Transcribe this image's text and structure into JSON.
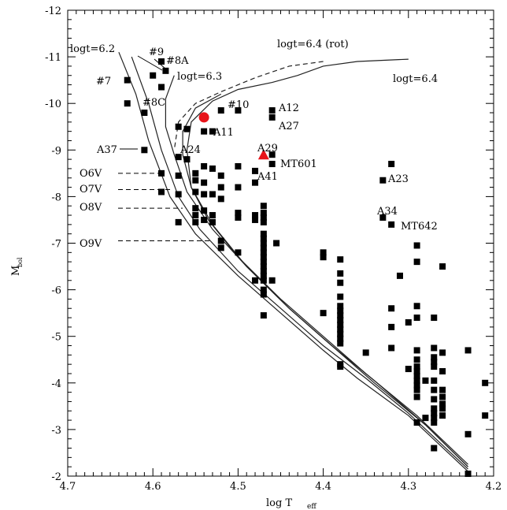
{
  "chart_data": {
    "type": "scatter",
    "title": "",
    "xlabel": "log  T",
    "xlabel_sub": "eff",
    "ylabel": "M",
    "ylabel_sub": "bol",
    "xlim": [
      4.7,
      4.2
    ],
    "ylim": [
      -2,
      -12
    ],
    "x_ticks": [
      4.7,
      4.6,
      4.5,
      4.4,
      4.3,
      4.2
    ],
    "x_tick_labels": [
      "4.7",
      "4.6",
      "4.5",
      "4.4",
      "4.3",
      "4.2"
    ],
    "y_ticks": [
      -12,
      -11,
      -10,
      -9,
      -8,
      -7,
      -6,
      -5,
      -4,
      -3,
      -2
    ],
    "y_tick_labels": [
      "-12",
      "-11",
      "-10",
      "-9",
      "-8",
      "-7",
      "-6",
      "-5",
      "-4",
      "-3",
      "-2"
    ],
    "grid": false,
    "marker_color": "#000000",
    "highlight_color": "#e8141a",
    "stars": [
      [
        4.63,
        -10.5
      ],
      [
        4.63,
        -10.0
      ],
      [
        4.61,
        -9.8
      ],
      [
        4.61,
        -9.0
      ],
      [
        4.59,
        -10.9
      ],
      [
        4.6,
        -10.6
      ],
      [
        4.585,
        -10.7
      ],
      [
        4.59,
        -10.35
      ],
      [
        4.57,
        -9.5
      ],
      [
        4.56,
        -9.45
      ],
      [
        4.57,
        -8.85
      ],
      [
        4.56,
        -8.8
      ],
      [
        4.54,
        -9.4
      ],
      [
        4.53,
        -9.4
      ],
      [
        4.52,
        -9.85
      ],
      [
        4.5,
        -9.85
      ],
      [
        4.46,
        -9.85
      ],
      [
        4.46,
        -9.7
      ],
      [
        4.46,
        -8.9
      ],
      [
        4.46,
        -8.7
      ],
      [
        4.48,
        -8.55
      ],
      [
        4.5,
        -8.65
      ],
      [
        4.59,
        -8.5
      ],
      [
        4.59,
        -8.1
      ],
      [
        4.57,
        -8.45
      ],
      [
        4.57,
        -8.05
      ],
      [
        4.57,
        -7.45
      ],
      [
        4.55,
        -8.5
      ],
      [
        4.55,
        -8.35
      ],
      [
        4.55,
        -8.1
      ],
      [
        4.55,
        -7.75
      ],
      [
        4.55,
        -7.6
      ],
      [
        4.55,
        -7.45
      ],
      [
        4.54,
        -8.65
      ],
      [
        4.54,
        -8.3
      ],
      [
        4.54,
        -8.05
      ],
      [
        4.54,
        -7.7
      ],
      [
        4.54,
        -7.5
      ],
      [
        4.53,
        -8.6
      ],
      [
        4.53,
        -8.05
      ],
      [
        4.53,
        -7.6
      ],
      [
        4.53,
        -7.45
      ],
      [
        4.52,
        -8.45
      ],
      [
        4.52,
        -8.2
      ],
      [
        4.52,
        -7.95
      ],
      [
        4.52,
        -7.05
      ],
      [
        4.52,
        -6.9
      ],
      [
        4.5,
        -8.2
      ],
      [
        4.5,
        -7.65
      ],
      [
        4.5,
        -7.55
      ],
      [
        4.5,
        -6.8
      ],
      [
        4.48,
        -8.3
      ],
      [
        4.48,
        -7.6
      ],
      [
        4.48,
        -7.5
      ],
      [
        4.48,
        -6.2
      ],
      [
        4.47,
        -7.8
      ],
      [
        4.47,
        -7.65
      ],
      [
        4.47,
        -7.55
      ],
      [
        4.47,
        -7.45
      ],
      [
        4.47,
        -7.2
      ],
      [
        4.47,
        -7.1
      ],
      [
        4.47,
        -7.0
      ],
      [
        4.47,
        -6.9
      ],
      [
        4.47,
        -6.8
      ],
      [
        4.47,
        -6.7
      ],
      [
        4.47,
        -6.6
      ],
      [
        4.47,
        -6.5
      ],
      [
        4.47,
        -6.4
      ],
      [
        4.47,
        -6.3
      ],
      [
        4.47,
        -6.2
      ],
      [
        4.47,
        -6.0
      ],
      [
        4.47,
        -5.9
      ],
      [
        4.47,
        -5.45
      ],
      [
        4.46,
        -6.2
      ],
      [
        4.455,
        -7.0
      ],
      [
        4.4,
        -6.8
      ],
      [
        4.4,
        -6.7
      ],
      [
        4.4,
        -5.5
      ],
      [
        4.38,
        -6.65
      ],
      [
        4.38,
        -6.35
      ],
      [
        4.38,
        -6.15
      ],
      [
        4.38,
        -5.85
      ],
      [
        4.38,
        -5.65
      ],
      [
        4.38,
        -5.55
      ],
      [
        4.38,
        -5.45
      ],
      [
        4.38,
        -5.35
      ],
      [
        4.38,
        -5.25
      ],
      [
        4.38,
        -5.15
      ],
      [
        4.38,
        -5.05
      ],
      [
        4.38,
        -4.95
      ],
      [
        4.38,
        -4.85
      ],
      [
        4.38,
        -4.4
      ],
      [
        4.38,
        -4.35
      ],
      [
        4.35,
        -4.65
      ],
      [
        4.33,
        -8.35
      ],
      [
        4.32,
        -8.7
      ],
      [
        4.33,
        -7.55
      ],
      [
        4.32,
        -7.4
      ],
      [
        4.32,
        -5.6
      ],
      [
        4.32,
        -5.2
      ],
      [
        4.32,
        -4.75
      ],
      [
        4.31,
        -6.3
      ],
      [
        4.3,
        -5.3
      ],
      [
        4.3,
        -4.3
      ],
      [
        4.29,
        -6.95
      ],
      [
        4.29,
        -6.6
      ],
      [
        4.29,
        -5.65
      ],
      [
        4.29,
        -5.4
      ],
      [
        4.29,
        -4.7
      ],
      [
        4.29,
        -4.5
      ],
      [
        4.29,
        -4.35
      ],
      [
        4.29,
        -4.25
      ],
      [
        4.29,
        -4.15
      ],
      [
        4.29,
        -4.05
      ],
      [
        4.29,
        -3.95
      ],
      [
        4.29,
        -3.85
      ],
      [
        4.29,
        -3.7
      ],
      [
        4.29,
        -3.15
      ],
      [
        4.28,
        -4.05
      ],
      [
        4.28,
        -3.25
      ],
      [
        4.27,
        -5.4
      ],
      [
        4.27,
        -4.75
      ],
      [
        4.27,
        -4.55
      ],
      [
        4.27,
        -4.45
      ],
      [
        4.27,
        -4.35
      ],
      [
        4.27,
        -4.05
      ],
      [
        4.27,
        -3.85
      ],
      [
        4.27,
        -3.65
      ],
      [
        4.27,
        -3.45
      ],
      [
        4.27,
        -3.35
      ],
      [
        4.27,
        -3.25
      ],
      [
        4.27,
        -3.15
      ],
      [
        4.27,
        -2.6
      ],
      [
        4.26,
        -6.5
      ],
      [
        4.26,
        -4.65
      ],
      [
        4.26,
        -4.25
      ],
      [
        4.26,
        -3.85
      ],
      [
        4.26,
        -3.7
      ],
      [
        4.26,
        -3.55
      ],
      [
        4.26,
        -3.45
      ],
      [
        4.26,
        -3.3
      ],
      [
        4.23,
        -4.7
      ],
      [
        4.23,
        -2.9
      ],
      [
        4.23,
        -2.05
      ],
      [
        4.21,
        -4.0
      ],
      [
        4.21,
        -3.3
      ]
    ],
    "red_circle": {
      "x": 4.54,
      "y": -9.7
    },
    "red_triangle": {
      "x": 4.47,
      "y": -8.9
    },
    "annotations": [
      {
        "text": "logt=6.2"
      },
      {
        "text": "#9"
      },
      {
        "text": "#8A"
      },
      {
        "text": "logt=6.3"
      },
      {
        "text": "logt=6.4 (rot)"
      },
      {
        "text": "logt=6.4"
      },
      {
        "text": "#7"
      },
      {
        "text": "#8C"
      },
      {
        "text": "#10"
      },
      {
        "text": "A12"
      },
      {
        "text": "A27"
      },
      {
        "text": "A11"
      },
      {
        "text": "A37"
      },
      {
        "text": "A24"
      },
      {
        "text": "A29"
      },
      {
        "text": "MT601"
      },
      {
        "text": "A41"
      },
      {
        "text": "A23"
      },
      {
        "text": "A34"
      },
      {
        "text": "MT642"
      },
      {
        "text": "O6V"
      },
      {
        "text": "O7V"
      },
      {
        "text": "O8V"
      },
      {
        "text": "O9V"
      }
    ],
    "spectral_lines": [
      {
        "label": "O6V",
        "y": -8.5
      },
      {
        "label": "O7V",
        "y": -8.15
      },
      {
        "label": "O8V",
        "y": -7.75
      },
      {
        "label": "O9V",
        "y": -7.05
      }
    ],
    "isochrones": [
      {
        "name": "iso-a",
        "points": [
          [
            4.64,
            -11.1
          ],
          [
            4.62,
            -10.2
          ],
          [
            4.605,
            -9.2
          ],
          [
            4.58,
            -8.0
          ],
          [
            4.55,
            -7.2
          ],
          [
            4.5,
            -6.3
          ],
          [
            4.45,
            -5.5
          ],
          [
            4.4,
            -4.7
          ],
          [
            4.36,
            -4.1
          ],
          [
            4.3,
            -3.3
          ],
          [
            4.23,
            -2.1
          ]
        ]
      },
      {
        "name": "iso-b",
        "points": [
          [
            4.625,
            -11.0
          ],
          [
            4.605,
            -10.0
          ],
          [
            4.59,
            -9.0
          ],
          [
            4.57,
            -8.0
          ],
          [
            4.545,
            -7.3
          ],
          [
            4.5,
            -6.4
          ],
          [
            4.45,
            -5.6
          ],
          [
            4.4,
            -4.8
          ],
          [
            4.35,
            -4.1
          ],
          [
            4.3,
            -3.35
          ],
          [
            4.23,
            -2.15
          ]
        ]
      },
      {
        "name": "iso-logt63",
        "points": [
          [
            4.575,
            -10.6
          ],
          [
            4.585,
            -10.1
          ],
          [
            4.585,
            -9.5
          ],
          [
            4.575,
            -8.9
          ],
          [
            4.56,
            -8.1
          ],
          [
            4.53,
            -7.3
          ],
          [
            4.49,
            -6.5
          ],
          [
            4.44,
            -5.6
          ],
          [
            4.39,
            -4.8
          ],
          [
            4.34,
            -4.05
          ],
          [
            4.28,
            -3.1
          ],
          [
            4.23,
            -2.2
          ]
        ]
      },
      {
        "name": "iso-logt64rot",
        "points": [
          [
            4.52,
            -10.2
          ],
          [
            4.55,
            -9.9
          ],
          [
            4.565,
            -9.4
          ],
          [
            4.565,
            -8.9
          ],
          [
            4.555,
            -8.2
          ],
          [
            4.535,
            -7.5
          ],
          [
            4.5,
            -6.7
          ],
          [
            4.45,
            -5.8
          ],
          [
            4.4,
            -5.0
          ],
          [
            4.35,
            -4.2
          ],
          [
            4.29,
            -3.3
          ],
          [
            4.23,
            -2.25
          ]
        ]
      },
      {
        "name": "iso-logt64",
        "points": [
          [
            4.3,
            -10.95
          ],
          [
            4.36,
            -10.9
          ],
          [
            4.4,
            -10.8
          ],
          [
            4.43,
            -10.6
          ],
          [
            4.46,
            -10.45
          ],
          [
            4.5,
            -10.3
          ],
          [
            4.53,
            -10.05
          ],
          [
            4.555,
            -9.6
          ],
          [
            4.56,
            -9.0
          ],
          [
            4.555,
            -8.2
          ],
          [
            4.53,
            -7.4
          ],
          [
            4.49,
            -6.5
          ],
          [
            4.44,
            -5.6
          ],
          [
            4.39,
            -4.8
          ],
          [
            4.34,
            -4.0
          ],
          [
            4.28,
            -3.1
          ],
          [
            4.23,
            -2.2
          ]
        ]
      }
    ],
    "dashed_isochrone": {
      "name": "iso-dashed",
      "points": [
        [
          4.4,
          -10.9
        ],
        [
          4.44,
          -10.8
        ],
        [
          4.48,
          -10.55
        ],
        [
          4.52,
          -10.25
        ],
        [
          4.55,
          -10.0
        ],
        [
          4.57,
          -9.6
        ],
        [
          4.575,
          -9.0
        ]
      ]
    }
  }
}
